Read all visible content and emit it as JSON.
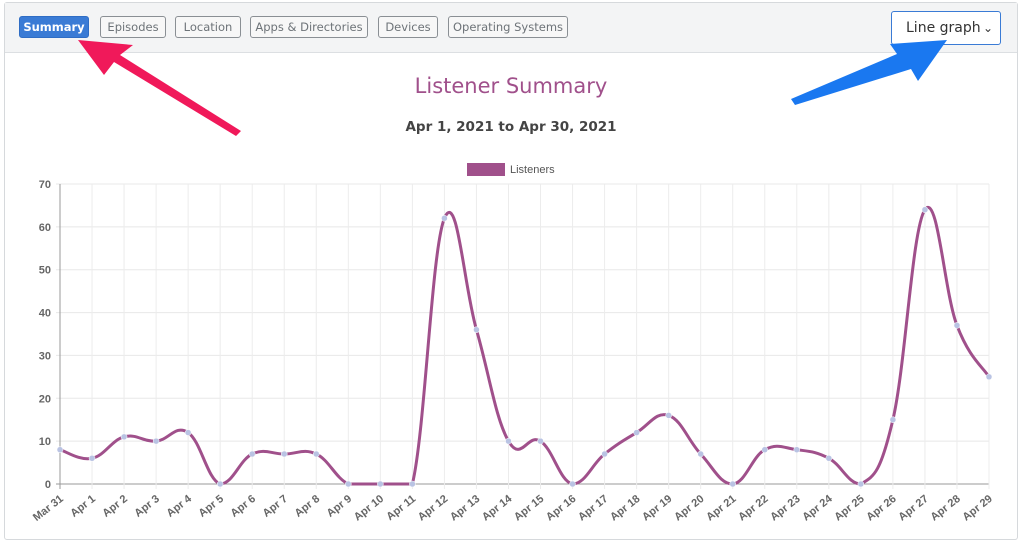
{
  "tabs": [
    {
      "label": "Summary",
      "active": true
    },
    {
      "label": "Episodes",
      "active": false
    },
    {
      "label": "Location",
      "active": false
    },
    {
      "label": "Apps & Directories",
      "active": false
    },
    {
      "label": "Devices",
      "active": false
    },
    {
      "label": "Operating Systems",
      "active": false
    }
  ],
  "view_select": {
    "value": "Line graph"
  },
  "colors": {
    "accent": "#3a7bd5",
    "series": "#a0508b",
    "point": "#b9c3e3",
    "annotation_red": "#f0195a",
    "annotation_blue": "#1a78f0"
  },
  "chart_data": {
    "type": "line",
    "title": "Listener Summary",
    "subtitle": "Apr 1, 2021 to Apr 30, 2021",
    "legend": [
      "Listeners"
    ],
    "categories": [
      "Mar 31",
      "Apr 1",
      "Apr 2",
      "Apr 3",
      "Apr 4",
      "Apr 5",
      "Apr 6",
      "Apr 7",
      "Apr 8",
      "Apr 9",
      "Apr 10",
      "Apr 11",
      "Apr 12",
      "Apr 13",
      "Apr 14",
      "Apr 15",
      "Apr 16",
      "Apr 17",
      "Apr 18",
      "Apr 19",
      "Apr 20",
      "Apr 21",
      "Apr 22",
      "Apr 23",
      "Apr 24",
      "Apr 25",
      "Apr 26",
      "Apr 27",
      "Apr 28",
      "Apr 29"
    ],
    "series": [
      {
        "name": "Listeners",
        "values": [
          8,
          6,
          11,
          10,
          12,
          0,
          7,
          7,
          7,
          0,
          0,
          0,
          62,
          36,
          10,
          10,
          0,
          7,
          12,
          16,
          7,
          0,
          8,
          8,
          6,
          0,
          15,
          64,
          37,
          25
        ]
      }
    ],
    "ylim": [
      0,
      70
    ],
    "yticks": [
      0,
      10,
      20,
      30,
      40,
      50,
      60,
      70
    ],
    "grid": true
  }
}
